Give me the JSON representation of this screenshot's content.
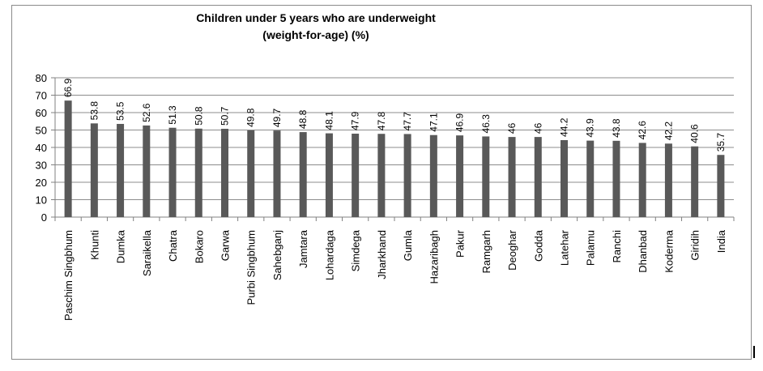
{
  "chart_data": {
    "type": "bar",
    "title_lines": [
      "Children under 5 years who are underweight",
      "(weight-for-age) (%)"
    ],
    "categories": [
      "Paschim Singbhum",
      "Khunti",
      "Dumka",
      "Saraikella",
      "Chatra",
      "Bokaro",
      "Garwa",
      "Purbi Singbhum",
      "Sahebganj",
      "Jamtara",
      "Lohardaga",
      "Simdega",
      "Jharkhand",
      "Gumla",
      "Hazaribagh",
      "Pakur",
      "Ramgarh",
      "Deoghar",
      "Godda",
      "Latehar",
      "Palamu",
      "Ranchi",
      "Dhanbad",
      "Koderma",
      "Giridih",
      "India"
    ],
    "values": [
      66.9,
      53.8,
      53.5,
      52.6,
      51.3,
      50.8,
      50.7,
      49.8,
      49.7,
      48.8,
      48.1,
      47.9,
      47.8,
      47.7,
      47.1,
      46.9,
      46.3,
      46,
      46,
      44.2,
      43.9,
      43.8,
      42.6,
      42.2,
      40.6,
      35.7
    ],
    "value_labels": [
      "66.9",
      "53.8",
      "53.5",
      "52.6",
      "51.3",
      "50.8",
      "50.7",
      "49.8",
      "49.7",
      "48.8",
      "48.1",
      "47.9",
      "47.8",
      "47.7",
      "47.1",
      "46.9",
      "46.3",
      "46",
      "46",
      "44.2",
      "43.9",
      "43.8",
      "42.6",
      "42.2",
      "40.6",
      "35.7"
    ],
    "xlabel": "",
    "ylabel": "",
    "ylim": [
      0,
      80
    ],
    "yticks": [
      0,
      10,
      20,
      30,
      40,
      50,
      60,
      70,
      80
    ],
    "grid": true,
    "legend": "none",
    "colors": {
      "bar": "#595959",
      "grid": "#8c8c8c",
      "axis": "#808080",
      "frame": "#8a8a8a"
    }
  }
}
